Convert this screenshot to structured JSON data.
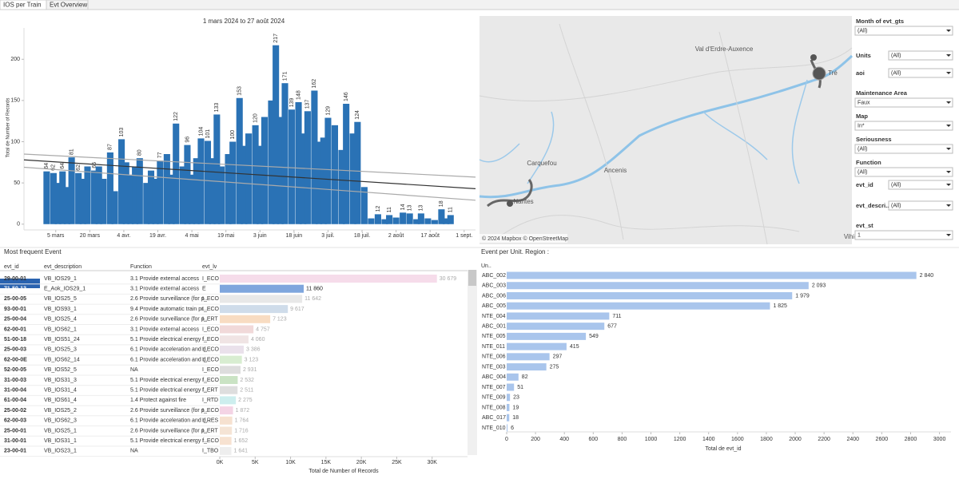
{
  "tabs": [
    "IOS per Train",
    "Evt Overview"
  ],
  "chart_data": [
    {
      "type": "bar",
      "title": "1 mars 2024 to 27 août 2024",
      "y_label": "Total de Number of Records",
      "color": "#2a72b5",
      "x": [
        0,
        3,
        5,
        7,
        9,
        11,
        14,
        16,
        18,
        21,
        23,
        25,
        28,
        30,
        33,
        35,
        37,
        39,
        41,
        44,
        46,
        48,
        50,
        53,
        55,
        57,
        60,
        62,
        64,
        66,
        68,
        71,
        73,
        75,
        77,
        80,
        82,
        85,
        87,
        89,
        92,
        94,
        96,
        99,
        101,
        103,
        105,
        108,
        111,
        113,
        115,
        118,
        120,
        122,
        124,
        127,
        130,
        132,
        135,
        137,
        140,
        143,
        146,
        149,
        151,
        154,
        157,
        160,
        163,
        165,
        168,
        171,
        174,
        176,
        178
      ],
      "values": [
        64,
        62,
        50,
        64,
        45,
        81,
        62,
        55,
        70,
        65,
        70,
        55,
        87,
        40,
        103,
        75,
        60,
        70,
        80,
        50,
        65,
        55,
        77,
        85,
        60,
        122,
        70,
        96,
        60,
        80,
        104,
        101,
        80,
        133,
        70,
        85,
        100,
        153,
        95,
        110,
        120,
        95,
        130,
        150,
        217,
        130,
        171,
        139,
        148,
        110,
        137,
        162,
        100,
        105,
        129,
        120,
        90,
        146,
        110,
        124,
        45,
        7,
        12,
        6,
        11,
        8,
        14,
        13,
        6,
        13,
        7,
        5,
        18,
        7,
        11
      ],
      "value_labels": [
        "64",
        "62",
        null,
        "64",
        null,
        "81",
        "62",
        null,
        null,
        "65",
        null,
        null,
        "87",
        null,
        "103",
        null,
        null,
        null,
        "80",
        null,
        null,
        null,
        "77",
        null,
        null,
        "122",
        null,
        "96",
        null,
        null,
        "104",
        "101",
        null,
        "133",
        null,
        null,
        "100",
        "153",
        null,
        null,
        "120",
        null,
        null,
        null,
        "217",
        null,
        "171",
        "139",
        "148",
        null,
        "137",
        "162",
        null,
        null,
        "129",
        null,
        null,
        "146",
        null,
        "124",
        null,
        null,
        "12",
        null,
        "11",
        null,
        "14",
        "13",
        null,
        "13",
        null,
        null,
        "18",
        null,
        "11"
      ],
      "xlim": [
        -10,
        189
      ],
      "ylim": [
        -7,
        238
      ],
      "xticks": [
        {
          "value": 4,
          "label": "5 mars"
        },
        {
          "value": 19,
          "label": "20 mars"
        },
        {
          "value": 34,
          "label": "4 avr."
        },
        {
          "value": 49,
          "label": "19 avr."
        },
        {
          "value": 64,
          "label": "4 mai"
        },
        {
          "value": 79,
          "label": "19 mai"
        },
        {
          "value": 94,
          "label": "3 juin"
        },
        {
          "value": 109,
          "label": "18 juin"
        },
        {
          "value": 124,
          "label": "3 juil."
        },
        {
          "value": 139,
          "label": "18 juil."
        },
        {
          "value": 154,
          "label": "2 août"
        },
        {
          "value": 169,
          "label": "17 août"
        },
        {
          "value": 184,
          "label": "1 sept."
        }
      ],
      "yticks": [
        0,
        50,
        100,
        150,
        200
      ],
      "trend_lines": {
        "x": [
          -10,
          189
        ],
        "series": [
          {
            "color": "#aaaaaa",
            "values": [
              85,
              57
            ]
          },
          {
            "color": "#333333",
            "values": [
              78,
              43
            ]
          },
          {
            "color": "#aaaaaa",
            "values": [
              69,
              29
            ]
          }
        ]
      }
    },
    {
      "type": "hbar",
      "title": "Event per Unit. Region :",
      "category_label": "Un..",
      "x_label": "Total de evt_id",
      "color": "#a9c5ec",
      "categories": [
        "ABC_002",
        "ABC_003",
        "ABC_006",
        "ABC_005",
        "NTE_004",
        "ABC_001",
        "NTE_005",
        "NTE_011",
        "NTE_006",
        "NTE_003",
        "ABC_004",
        "NTE_007",
        "NTE_009",
        "NTE_008",
        "ABC_017",
        "NTE_010"
      ],
      "values": [
        2840,
        2093,
        1979,
        1825,
        711,
        677,
        549,
        415,
        297,
        275,
        82,
        51,
        23,
        19,
        18,
        6
      ],
      "value_labels": [
        "2 840",
        "2 093",
        "1 979",
        "1 825",
        "711",
        "677",
        "549",
        "415",
        "297",
        "275",
        "82",
        "51",
        "23",
        "19",
        "18",
        "6"
      ],
      "xlim": [
        0,
        3080
      ],
      "xticks": [
        0,
        200,
        400,
        600,
        800,
        1000,
        1200,
        1400,
        1600,
        1800,
        2000,
        2200,
        2400,
        2600,
        2800,
        3000
      ]
    }
  ],
  "map": {
    "labels": [
      "Val d'Erdre-Auxence",
      "Ancenis",
      "Carquefou",
      "Nantes",
      "Vihiers",
      "Tré"
    ],
    "attribution": "© 2024 Mapbox © OpenStreetMap"
  },
  "filters": [
    {
      "label": "Month of evt_gts",
      "value": "(All)"
    },
    {
      "label": "Units",
      "value": "(All)"
    },
    {
      "label": "aoi",
      "value": "(All)"
    },
    {
      "label": "Maintenance Area",
      "value": "Faux"
    },
    {
      "label": "Map",
      "value": "In*"
    },
    {
      "label": "Seriousness",
      "value": "(All)"
    },
    {
      "label": "Function",
      "value": "(All)"
    },
    {
      "label": "evt_id",
      "value": "(All)"
    },
    {
      "label": "evt_descri...",
      "value": "(All)"
    },
    {
      "label": "evt_st",
      "value": "1"
    }
  ],
  "table": {
    "title": "Most frequent Event",
    "columns": [
      "evt_id",
      "evt_description",
      "Function",
      "evt_lv"
    ],
    "rows": [
      [
        "29-00-01",
        "VB_IOS29_1",
        "3.1 Provide external access",
        "I_ECO"
      ],
      [
        "71-50-13",
        "E_Aok_IOS29_1",
        "3.1 Provide external access",
        "E"
      ],
      [
        "25-00-05",
        "VB_IOS25_5",
        "2.6 Provide surveillance (for p...",
        "I_ECO"
      ],
      [
        "93-00-01",
        "VB_IOS93_1",
        "9.4 Provide automatic train pr...",
        "I_ECO"
      ],
      [
        "25-00-04",
        "VB_IOS25_4",
        "2.6 Provide surveillance (for p...",
        "I_ERT"
      ],
      [
        "62-00-01",
        "VB_IOS62_1",
        "3.1 Provide external access",
        "I_ECO"
      ],
      [
        "51-00-18",
        "VB_IOS51_24",
        "5.1 Provide electrical energy f...",
        "I_ECO"
      ],
      [
        "25-00-03",
        "VB_IOS25_3",
        "6.1 Provide acceleration and d...",
        "I_ECO"
      ],
      [
        "62-00-0E",
        "VB_IOS62_14",
        "6.1 Provide acceleration and d...",
        "I_ECO"
      ],
      [
        "52-00-05",
        "VB_IOS52_5",
        "NA",
        "I_ECO"
      ],
      [
        "31-00-03",
        "VB_IOS31_3",
        "5.1 Provide electrical energy f...",
        "I_ECO"
      ],
      [
        "31-00-04",
        "VB_IOS31_4",
        "5.1 Provide electrical energy f...",
        "I_ERT"
      ],
      [
        "61-00-04",
        "VB_IOS61_4",
        "1.4 Protect against fire",
        "I_RTD"
      ],
      [
        "25-00-02",
        "VB_IOS25_2",
        "2.6 Provide surveillance (for p...",
        "I_ECO"
      ],
      [
        "62-00-03",
        "VB_IOS62_3",
        "6.1 Provide acceleration and d...",
        "I_RES"
      ],
      [
        "25-00-01",
        "VB_IOS25_1",
        "2.6 Provide surveillance (for p...",
        "I_ERT"
      ],
      [
        "31-00-01",
        "VB_IOS31_1",
        "5.1 Provide electrical energy f...",
        "I_ECO"
      ],
      [
        "23-00-01",
        "VB_IOS23_1",
        "NA",
        "I_TBO"
      ]
    ],
    "values": [
      30679,
      11860,
      11642,
      9617,
      7123,
      4757,
      4060,
      3386,
      3123,
      2931,
      2532,
      2511,
      2275,
      1872,
      1764,
      1716,
      1652,
      1641
    ],
    "value_labels": [
      "30 679",
      "11 860",
      "11 642",
      "9 617",
      "7 123",
      "4 757",
      "4 060",
      "3 386",
      "3 123",
      "2 931",
      "2 532",
      "2 511",
      "2 275",
      "1 872",
      "1 764",
      "1 716",
      "1 652",
      "1 641"
    ],
    "colors": [
      "#f6dcea",
      "#7fa6dd",
      "#e8e8e8",
      "#cfdcea",
      "#f8dcc2",
      "#f1d9d9",
      "#f0e4e4",
      "#eae1eb",
      "#d8edd1",
      "#dddddd",
      "#cae3c4",
      "#dedede",
      "#cdeeee",
      "#f4d4e5",
      "#f6e1d0",
      "#f5e4d5",
      "#f7e2d1",
      "#eeeeee"
    ],
    "x_label": "Total de Number of Records",
    "xlim": [
      0,
      35000
    ],
    "xticks": [
      {
        "value": 0,
        "label": "0K"
      },
      {
        "value": 5000,
        "label": "5K"
      },
      {
        "value": 10000,
        "label": "10K"
      },
      {
        "value": 15000,
        "label": "15K"
      },
      {
        "value": 20000,
        "label": "20K"
      },
      {
        "value": 25000,
        "label": "25K"
      },
      {
        "value": 30000,
        "label": "30K"
      }
    ]
  }
}
